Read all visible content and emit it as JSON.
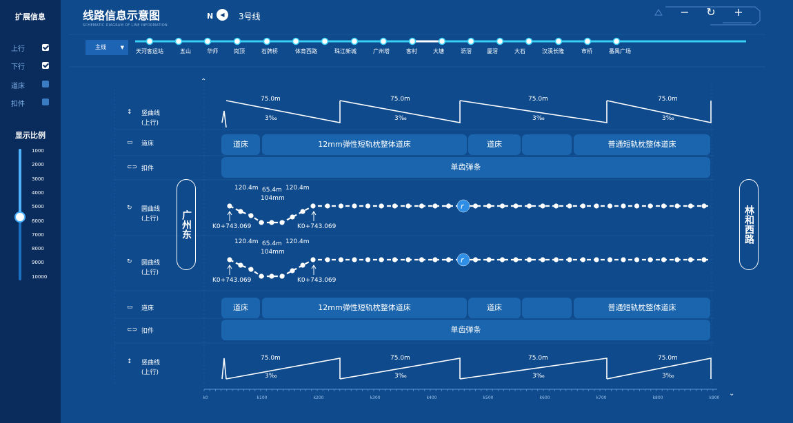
{
  "sidebar": {
    "title": "扩展信息",
    "options": [
      {
        "label": "上行",
        "checked": true
      },
      {
        "label": "下行",
        "checked": true
      },
      {
        "label": "道床",
        "checked": false
      },
      {
        "label": "扣件",
        "checked": false
      }
    ],
    "scale_title": "显示比例",
    "scale_labels": [
      "1000",
      "2000",
      "3000",
      "4000",
      "5000",
      "6000",
      "7000",
      "8000",
      "9000",
      "10000"
    ],
    "scale_value": 6000
  },
  "header": {
    "title": "线路信息示意图",
    "subtitle": "SCHEMATIC DIAGRAM OF LINE INFORMATION",
    "north": "N",
    "line": "3号线",
    "zoom_out": "−",
    "refresh": "↻",
    "zoom_in": "+"
  },
  "selector": {
    "value": "主线"
  },
  "stations": [
    "天河客运站",
    "五山",
    "华师",
    "岗顶",
    "石牌桥",
    "体育西路",
    "珠江新城",
    "广州塔",
    "客村",
    "大塘",
    "沥滘",
    "厦滘",
    "大石",
    "汉溪长隆",
    "市桥",
    "番禺广场"
  ],
  "terminals": {
    "left": "广州东",
    "right": "林和西路"
  },
  "rows": {
    "vertical_curve": {
      "label": "竖曲线",
      "sub": "(上行)"
    },
    "bed": {
      "label": "道床"
    },
    "fastener": {
      "label": "扣件"
    },
    "circular_curve": {
      "label": "圆曲线",
      "sub": "(上行)"
    }
  },
  "slopes": {
    "length": "75.0m",
    "grade": "3‰"
  },
  "bed_segments": [
    "道床",
    "12mm弹性短轨枕整体道床",
    "道床",
    "",
    "普通短轨枕整体道床"
  ],
  "fastener_segment": "单齿弹条",
  "curve": {
    "len1": "120.4m",
    "len2": "65.4m",
    "len3": "120.4m",
    "radius": "104mm",
    "km_start": "K0+743.069",
    "km_end": "K0+743.069",
    "badge": "r"
  },
  "axis": [
    "k0",
    "k100",
    "k200",
    "k300",
    "k400",
    "k500",
    "k600",
    "k700",
    "k800",
    "k900"
  ]
}
